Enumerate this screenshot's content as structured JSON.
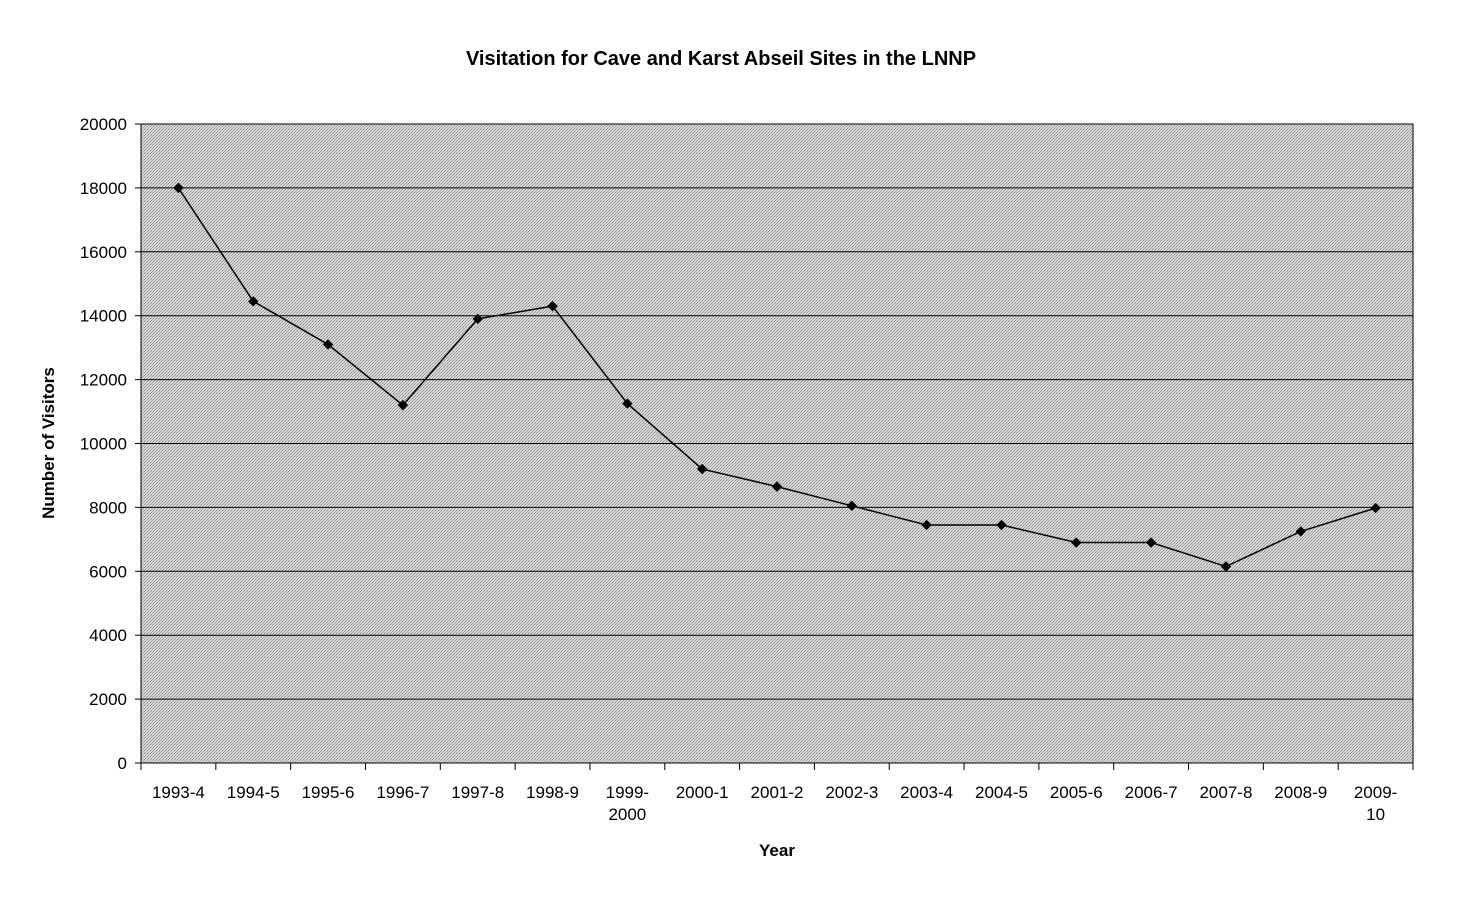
{
  "chart_data": {
    "type": "line",
    "title": "Visitation for Cave and Karst Abseil Sites in the LNNP",
    "xlabel": "Year",
    "ylabel": "Number of Visitors",
    "ylim": [
      0,
      20000
    ],
    "yticks": [
      0,
      2000,
      4000,
      6000,
      8000,
      10000,
      12000,
      14000,
      16000,
      18000,
      20000
    ],
    "categories": [
      "1993-4",
      "1994-5",
      "1995-6",
      "1996-7",
      "1997-8",
      "1998-9",
      "1999-2000",
      "2000-1",
      "2001-2",
      "2002-3",
      "2003-4",
      "2004-5",
      "2005-6",
      "2006-7",
      "2007-8",
      "2008-9",
      "2009-10"
    ],
    "category_label_lines": [
      [
        "1993-4"
      ],
      [
        "1994-5"
      ],
      [
        "1995-6"
      ],
      [
        "1996-7"
      ],
      [
        "1997-8"
      ],
      [
        "1998-9"
      ],
      [
        "1999-",
        "2000"
      ],
      [
        "2000-1"
      ],
      [
        "2001-2"
      ],
      [
        "2002-3"
      ],
      [
        "2003-4"
      ],
      [
        "2004-5"
      ],
      [
        "2005-6"
      ],
      [
        "2006-7"
      ],
      [
        "2007-8"
      ],
      [
        "2008-9"
      ],
      [
        "2009-",
        "10"
      ]
    ],
    "series": [
      {
        "values": [
          18000,
          14450,
          13100,
          11200,
          13900,
          14300,
          11250,
          9200,
          8650,
          8050,
          7450,
          7450,
          6900,
          6900,
          6150,
          7250,
          7980
        ]
      }
    ],
    "grid": true,
    "legend": "none",
    "colors": {
      "plot_background": "#c8c8c8",
      "line": "#000000",
      "marker": "#000000",
      "gridline": "#000000"
    }
  }
}
